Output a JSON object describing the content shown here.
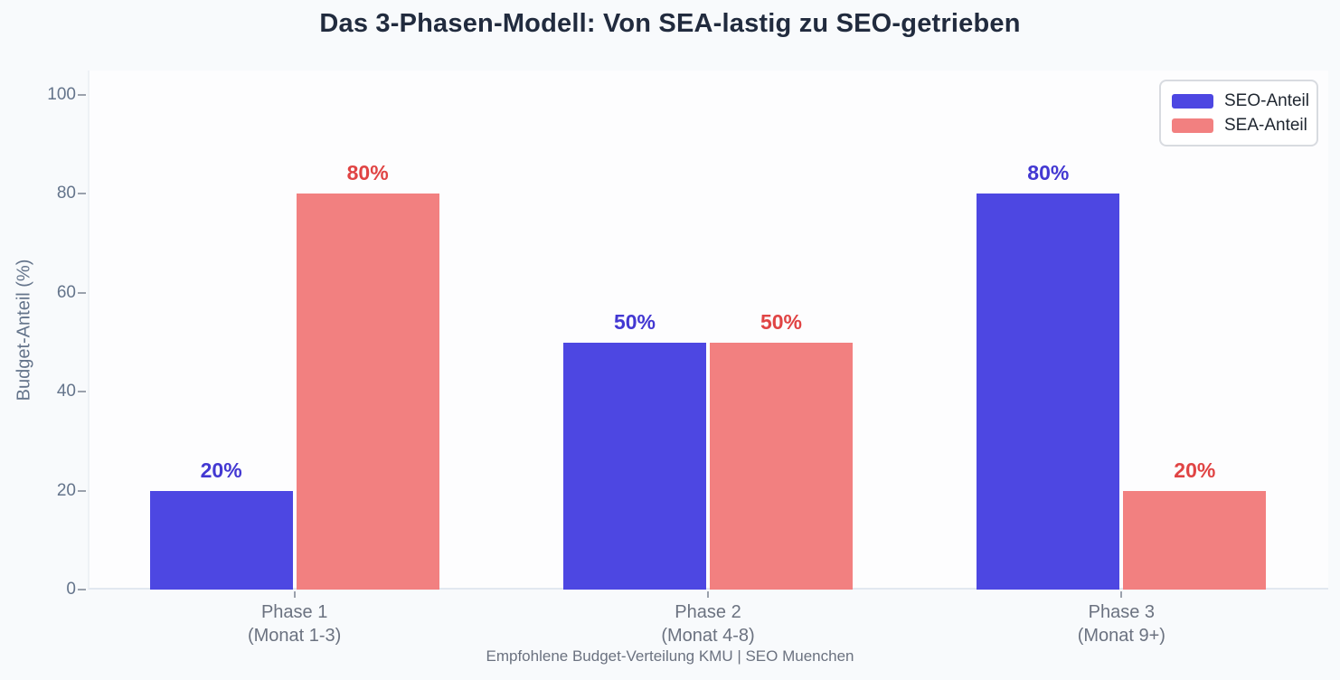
{
  "footer": "Empfohlene Budget-Verteilung KMU | SEO Muenchen",
  "colors": {
    "background": "#f8fafc",
    "plot_background": "#fdfdfe",
    "title_text": "#212b3e",
    "axis_text": "#64748b",
    "seo_bar": "#4d47e2",
    "sea_bar": "#f28080",
    "seo_data_label": "#4338d2",
    "sea_data_label": "#e04444"
  },
  "chart_data": {
    "type": "bar",
    "title": "Das 3-Phasen-Modell: Von SEA-lastig zu SEO-getrieben",
    "categories": [
      "Phase 1",
      "Phase 2",
      "Phase 3"
    ],
    "category_sublabels": [
      "(Monat 1-3)",
      "(Monat 4-8)",
      "(Monat 9+)"
    ],
    "series": [
      {
        "name": "SEO-Anteil",
        "values": [
          20,
          50,
          80
        ],
        "data_labels": [
          "20%",
          "50%",
          "80%"
        ],
        "color": "#4d47e2",
        "label_color": "#4338d2"
      },
      {
        "name": "SEA-Anteil",
        "values": [
          80,
          50,
          20
        ],
        "data_labels": [
          "80%",
          "50%",
          "20%"
        ],
        "color": "#f28080",
        "label_color": "#e04444"
      }
    ],
    "xlabel": "",
    "ylabel": "Budget-Anteil (%)",
    "yticks": [
      0,
      20,
      40,
      60,
      80,
      100
    ],
    "ylim": [
      0,
      105
    ],
    "grid": false,
    "legend_position": "top-right"
  }
}
